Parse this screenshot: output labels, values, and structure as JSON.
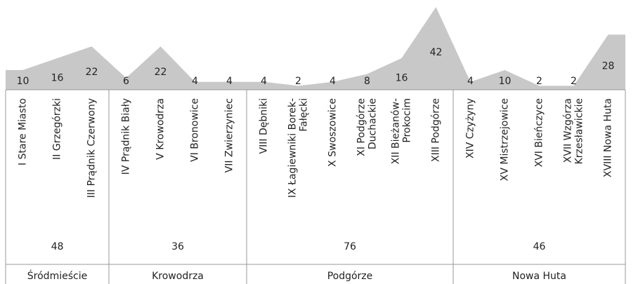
{
  "chart_data": {
    "type": "area",
    "color": "#c8c8c8",
    "categories": [
      "I Stare Miasto",
      "II Grzegórzki",
      "III Prądnik Czerwony",
      "IV Prądnik Biały",
      "V Krowodrza",
      "VI Bronowice",
      "VII Zwierzyniec",
      "VIII Dębniki",
      "IX Łagiewniki Borek-\nFałęcki",
      "X Swoszowice",
      "XI Podgórze\nDuchackie",
      "XII Bieżanów-\nProkocim",
      "XIII Podgórze",
      "XIV Czyżyny",
      "XV Mistrzejowice",
      "XVI Bieńczyce",
      "XVII Wzgórza\nKrzesławickie",
      "XVIII Nowa Huta"
    ],
    "values": [
      10,
      16,
      22,
      6,
      22,
      4,
      4,
      4,
      2,
      4,
      8,
      16,
      42,
      4,
      10,
      2,
      2,
      28
    ],
    "groups": [
      {
        "name": "Śródmieście",
        "value": 48,
        "count": 3
      },
      {
        "name": "Krowodrza",
        "value": 36,
        "count": 4
      },
      {
        "name": "Podgórze",
        "value": 76,
        "count": 6
      },
      {
        "name": "Nowa Huta",
        "value": 46,
        "count": 5
      }
    ]
  }
}
